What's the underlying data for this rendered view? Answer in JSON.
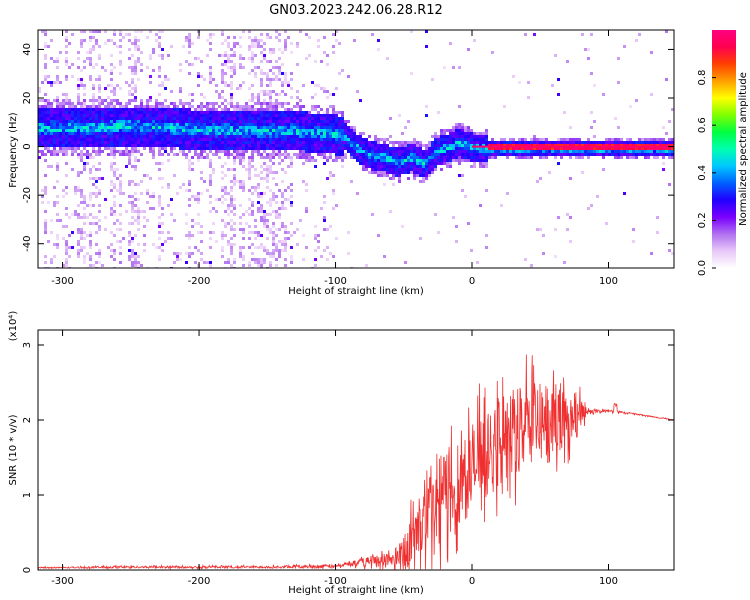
{
  "title": "GN03.2023.242.06.28.R12",
  "chart_data": [
    {
      "type": "heatmap",
      "xlabel": "Height of straight line (km)",
      "ylabel": "Frequency (Hz)",
      "xlim": [
        -318,
        148
      ],
      "ylim": [
        -50,
        48
      ],
      "xticks": [
        -300,
        -200,
        -100,
        0,
        100
      ],
      "yticks": [
        -40,
        -20,
        0,
        20,
        40
      ],
      "colorbar": {
        "label": "Normalized spectral amplitude",
        "range": [
          0,
          1
        ],
        "ticks": [
          "0.0",
          "0.2",
          "0.4",
          "0.6",
          "0.8"
        ],
        "colors": [
          "#ffffff",
          "#e8c8f8",
          "#b070f0",
          "#7a00ff",
          "#2000ff",
          "#0060ff",
          "#00c8ff",
          "#00ffb0",
          "#00ff40",
          "#80ff00",
          "#ffff00",
          "#ffa000",
          "#ff4000",
          "#ff0050",
          "#ff0080"
        ]
      },
      "ridge": [
        {
          "x": -318,
          "y": 8
        },
        {
          "x": -280,
          "y": 8.5
        },
        {
          "x": -250,
          "y": 9
        },
        {
          "x": -220,
          "y": 8
        },
        {
          "x": -190,
          "y": 7.5
        },
        {
          "x": -160,
          "y": 7
        },
        {
          "x": -130,
          "y": 7
        },
        {
          "x": -110,
          "y": 6
        },
        {
          "x": -95,
          "y": 5
        },
        {
          "x": -85,
          "y": 0
        },
        {
          "x": -75,
          "y": -3
        },
        {
          "x": -65,
          "y": -4
        },
        {
          "x": -55,
          "y": -6
        },
        {
          "x": -45,
          "y": -4
        },
        {
          "x": -35,
          "y": -7
        },
        {
          "x": -28,
          "y": -2
        },
        {
          "x": -20,
          "y": 0
        },
        {
          "x": -10,
          "y": 2
        },
        {
          "x": 0,
          "y": 0
        },
        {
          "x": 20,
          "y": 0
        },
        {
          "x": 60,
          "y": 0
        },
        {
          "x": 100,
          "y": 0
        },
        {
          "x": 148,
          "y": 0
        }
      ]
    },
    {
      "type": "line",
      "xlabel": "Height of straight line (km)",
      "ylabel": "SNR (10 * v/v)",
      "y_multiplier": "(x10⁴)",
      "xlim": [
        -318,
        148
      ],
      "ylim": [
        0,
        3.2
      ],
      "xticks": [
        -300,
        -200,
        -100,
        0,
        100
      ],
      "yticks": [
        0,
        1,
        2,
        3
      ],
      "color": "#f03030",
      "series": [
        {
          "x": [
            -318,
            -250,
            -150,
            -100,
            -90,
            -80,
            -70,
            -60,
            -50,
            -40,
            -30,
            -20,
            -10,
            0,
            10,
            20,
            30,
            40,
            50,
            60,
            70,
            80,
            85,
            90,
            100,
            110,
            120,
            130,
            148
          ],
          "mean": [
            0.03,
            0.04,
            0.04,
            0.05,
            0.08,
            0.1,
            0.13,
            0.14,
            0.25,
            0.5,
            0.75,
            1.0,
            1.2,
            1.35,
            1.55,
            1.7,
            1.85,
            1.95,
            2.0,
            2.0,
            2.0,
            2.05,
            2.1,
            2.12,
            2.12,
            2.1,
            2.08,
            2.05,
            2.0
          ],
          "amp": [
            0.01,
            0.02,
            0.02,
            0.03,
            0.05,
            0.08,
            0.12,
            0.15,
            0.35,
            0.6,
            0.8,
            0.9,
            0.9,
            0.9,
            0.85,
            0.8,
            0.85,
            0.8,
            0.7,
            0.6,
            0.55,
            0.4,
            0.05,
            0.03,
            0.02,
            0.02,
            0.01,
            0.01,
            0.01
          ]
        }
      ]
    }
  ]
}
